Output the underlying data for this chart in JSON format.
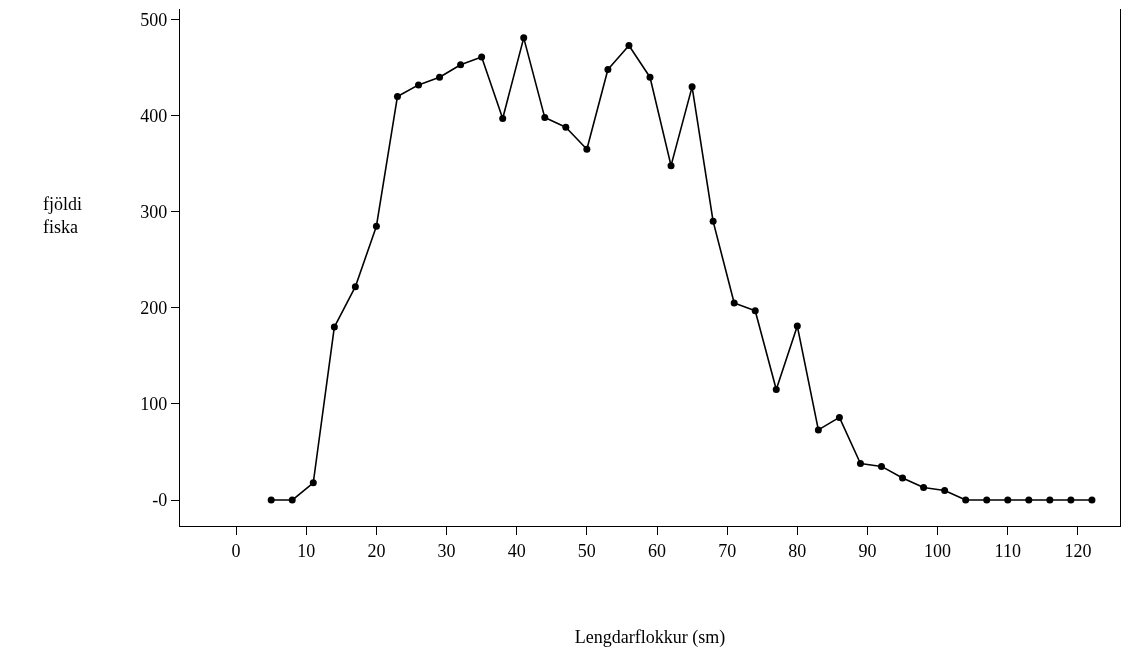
{
  "chart_data": {
    "type": "line",
    "xlabel": "Lengdarflokkur (sm)",
    "ylabel": "fjöldi fiska",
    "x": [
      5,
      8,
      11,
      14,
      17,
      20,
      23,
      26,
      29,
      32,
      35,
      38,
      41,
      44,
      47,
      50,
      53,
      56,
      59,
      62,
      65,
      68,
      71,
      74,
      77,
      80,
      83,
      86,
      89,
      92,
      95,
      98,
      101,
      104,
      107,
      110,
      113,
      116,
      119,
      122
    ],
    "series": [
      {
        "color": "#000000",
        "values": [
          0,
          0,
          18,
          180,
          222,
          285,
          420,
          432,
          440,
          453,
          461,
          397,
          481,
          398,
          388,
          365,
          448,
          473,
          440,
          348,
          430,
          290,
          205,
          197,
          115,
          181,
          73,
          86,
          38,
          35,
          23,
          13,
          10,
          0,
          0,
          0,
          0,
          0,
          0,
          0
        ]
      }
    ],
    "xlim": [
      -8,
      126
    ],
    "xticks": [
      0,
      10,
      20,
      30,
      40,
      50,
      60,
      70,
      80,
      90,
      100,
      110,
      120
    ],
    "ylim": [
      -27,
      511
    ],
    "yticks": [
      {
        "value": 0,
        "label": "-0"
      },
      100,
      200,
      300,
      400,
      500
    ],
    "grid": false,
    "marker": "circle",
    "line_style": "solid"
  }
}
